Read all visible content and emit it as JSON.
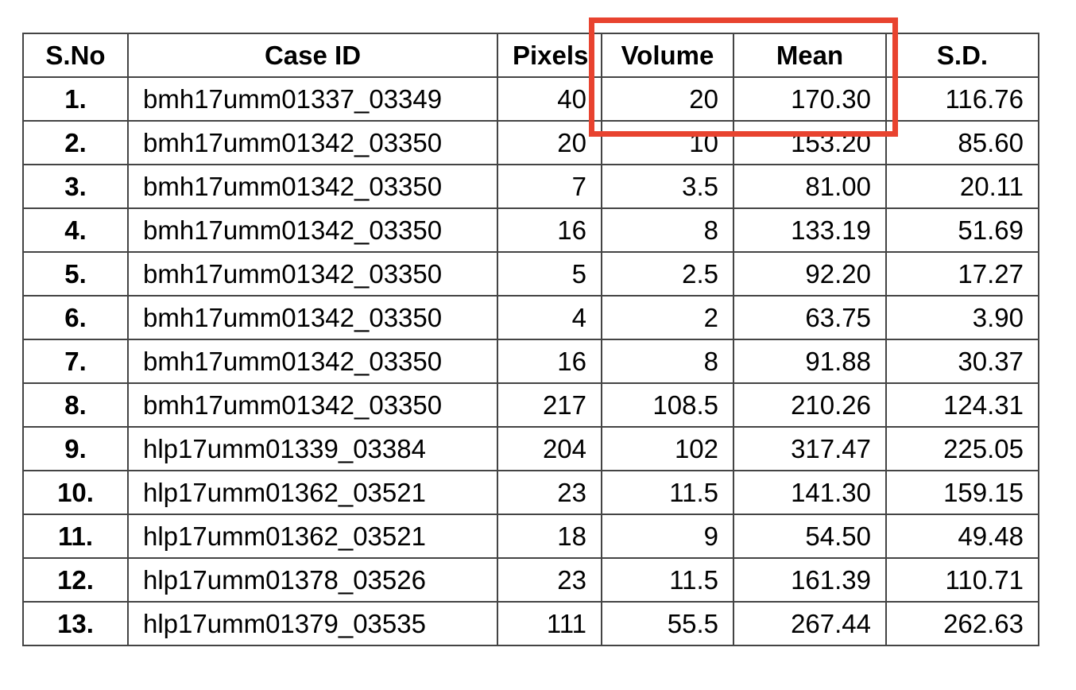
{
  "table": {
    "headers": {
      "sno": "S.No",
      "case_id": "Case ID",
      "pixels": "Pixels",
      "volume": "Volume",
      "mean": "Mean",
      "sd": "S.D."
    },
    "rows": [
      {
        "sno": "1.",
        "case_id": "bmh17umm01337_03349",
        "pixels": "40",
        "volume": "20",
        "mean": "170.30",
        "sd": "116.76"
      },
      {
        "sno": "2.",
        "case_id": "bmh17umm01342_03350",
        "pixels": "20",
        "volume": "10",
        "mean": "153.20",
        "sd": "85.60"
      },
      {
        "sno": "3.",
        "case_id": "bmh17umm01342_03350",
        "pixels": "7",
        "volume": "3.5",
        "mean": "81.00",
        "sd": "20.11"
      },
      {
        "sno": "4.",
        "case_id": "bmh17umm01342_03350",
        "pixels": "16",
        "volume": "8",
        "mean": "133.19",
        "sd": "51.69"
      },
      {
        "sno": "5.",
        "case_id": "bmh17umm01342_03350",
        "pixels": "5",
        "volume": "2.5",
        "mean": "92.20",
        "sd": "17.27"
      },
      {
        "sno": "6.",
        "case_id": "bmh17umm01342_03350",
        "pixels": "4",
        "volume": "2",
        "mean": "63.75",
        "sd": "3.90"
      },
      {
        "sno": "7.",
        "case_id": "bmh17umm01342_03350",
        "pixels": "16",
        "volume": "8",
        "mean": "91.88",
        "sd": "30.37"
      },
      {
        "sno": "8.",
        "case_id": "bmh17umm01342_03350",
        "pixels": "217",
        "volume": "108.5",
        "mean": "210.26",
        "sd": "124.31"
      },
      {
        "sno": "9.",
        "case_id": "hlp17umm01339_03384",
        "pixels": "204",
        "volume": "102",
        "mean": "317.47",
        "sd": "225.05"
      },
      {
        "sno": "10.",
        "case_id": "hlp17umm01362_03521",
        "pixels": "23",
        "volume": "11.5",
        "mean": "141.30",
        "sd": "159.15"
      },
      {
        "sno": "11.",
        "case_id": "hlp17umm01362_03521",
        "pixels": "18",
        "volume": "9",
        "mean": "54.50",
        "sd": "49.48"
      },
      {
        "sno": "12.",
        "case_id": "hlp17umm01378_03526",
        "pixels": "23",
        "volume": "11.5",
        "mean": "161.39",
        "sd": "110.71"
      },
      {
        "sno": "13.",
        "case_id": "hlp17umm01379_03535",
        "pixels": "111",
        "volume": "55.5",
        "mean": "267.44",
        "sd": "262.63"
      }
    ]
  },
  "highlight": {
    "color": "#e8432f",
    "target": "Volume and Mean columns, first row"
  }
}
